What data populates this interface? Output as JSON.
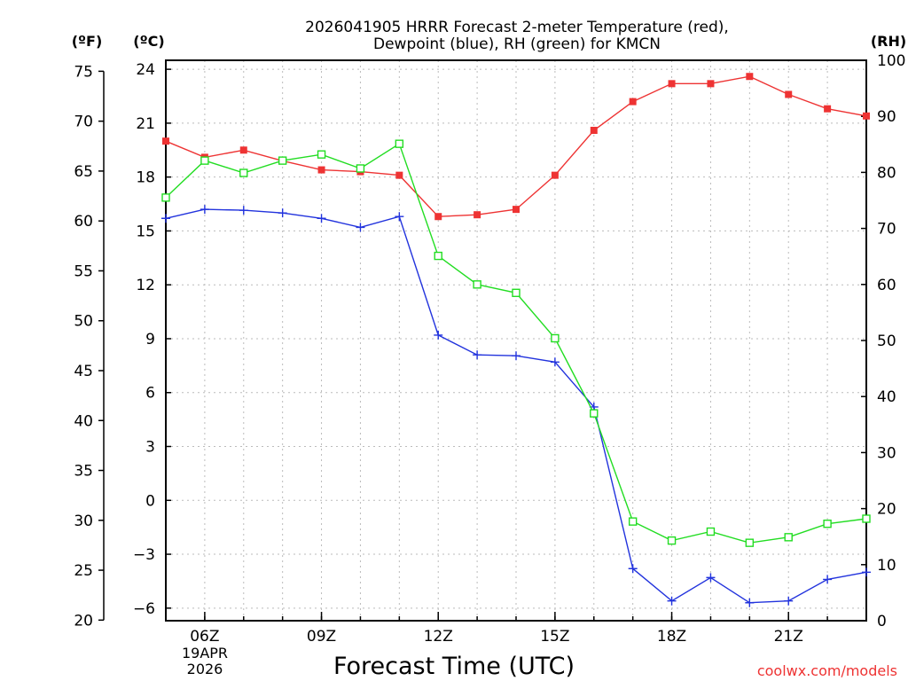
{
  "chart_data": {
    "type": "line",
    "title_line1": "2026041905 HRRR Forecast 2-meter Temperature (red),",
    "title_line2": "Dewpoint (blue), RH (green) for KMCN",
    "xlabel": "Forecast Time (UTC)",
    "credit": "coolwx.com/models",
    "units": {
      "fahrenheit": "(ºF)",
      "celsius": "(ºC)",
      "rh": "(RH)"
    },
    "date_label": {
      "day": "19APR",
      "year": "2026"
    },
    "x_range_hours": [
      5,
      23
    ],
    "x_ticks": [
      {
        "hour": 6,
        "label": "06Z"
      },
      {
        "hour": 9,
        "label": "09Z"
      },
      {
        "hour": 12,
        "label": "12Z"
      },
      {
        "hour": 15,
        "label": "15Z"
      },
      {
        "hour": 18,
        "label": "18Z"
      },
      {
        "hour": 21,
        "label": "21Z"
      }
    ],
    "y_left_celsius": {
      "range": [
        -6.7,
        24.5
      ],
      "ticks": [
        24,
        21,
        18,
        15,
        12,
        9,
        6,
        3,
        0,
        -3,
        -6
      ]
    },
    "y_left_fahrenheit": {
      "ticks": [
        75,
        70,
        65,
        60,
        55,
        50,
        45,
        40,
        35,
        30,
        25,
        20
      ]
    },
    "y_right_rh": {
      "range": [
        0,
        100
      ],
      "ticks": [
        100,
        90,
        80,
        70,
        60,
        50,
        40,
        30,
        20,
        10,
        0
      ]
    },
    "hours": [
      5,
      6,
      7,
      8,
      9,
      10,
      11,
      12,
      13,
      14,
      15,
      16,
      17,
      18,
      19,
      20,
      21,
      22,
      23
    ],
    "series": [
      {
        "name": "Temperature",
        "axis": "celsius",
        "color": "#ee3333",
        "marker": "filled-square",
        "values": [
          20.0,
          19.1,
          19.5,
          18.9,
          18.4,
          18.3,
          18.1,
          15.8,
          15.9,
          16.2,
          18.1,
          20.6,
          22.2,
          23.2,
          23.2,
          23.6,
          22.6,
          21.8,
          21.4
        ]
      },
      {
        "name": "Dewpoint",
        "axis": "celsius",
        "color": "#2233dd",
        "marker": "plus",
        "values": [
          15.7,
          16.2,
          16.15,
          16.0,
          15.7,
          15.2,
          15.8,
          9.2,
          8.1,
          8.05,
          7.7,
          5.2,
          -3.8,
          -5.6,
          -4.3,
          -5.7,
          -5.6,
          -4.4,
          -4.0
        ]
      },
      {
        "name": "RH",
        "axis": "rh",
        "color": "#22dd22",
        "marker": "open-square",
        "values": [
          75.5,
          82.1,
          79.9,
          82.1,
          83.2,
          80.7,
          85.1,
          65.1,
          60.0,
          58.5,
          50.4,
          37.0,
          17.7,
          14.3,
          15.9,
          13.9,
          14.9,
          17.3,
          18.2
        ]
      }
    ]
  }
}
